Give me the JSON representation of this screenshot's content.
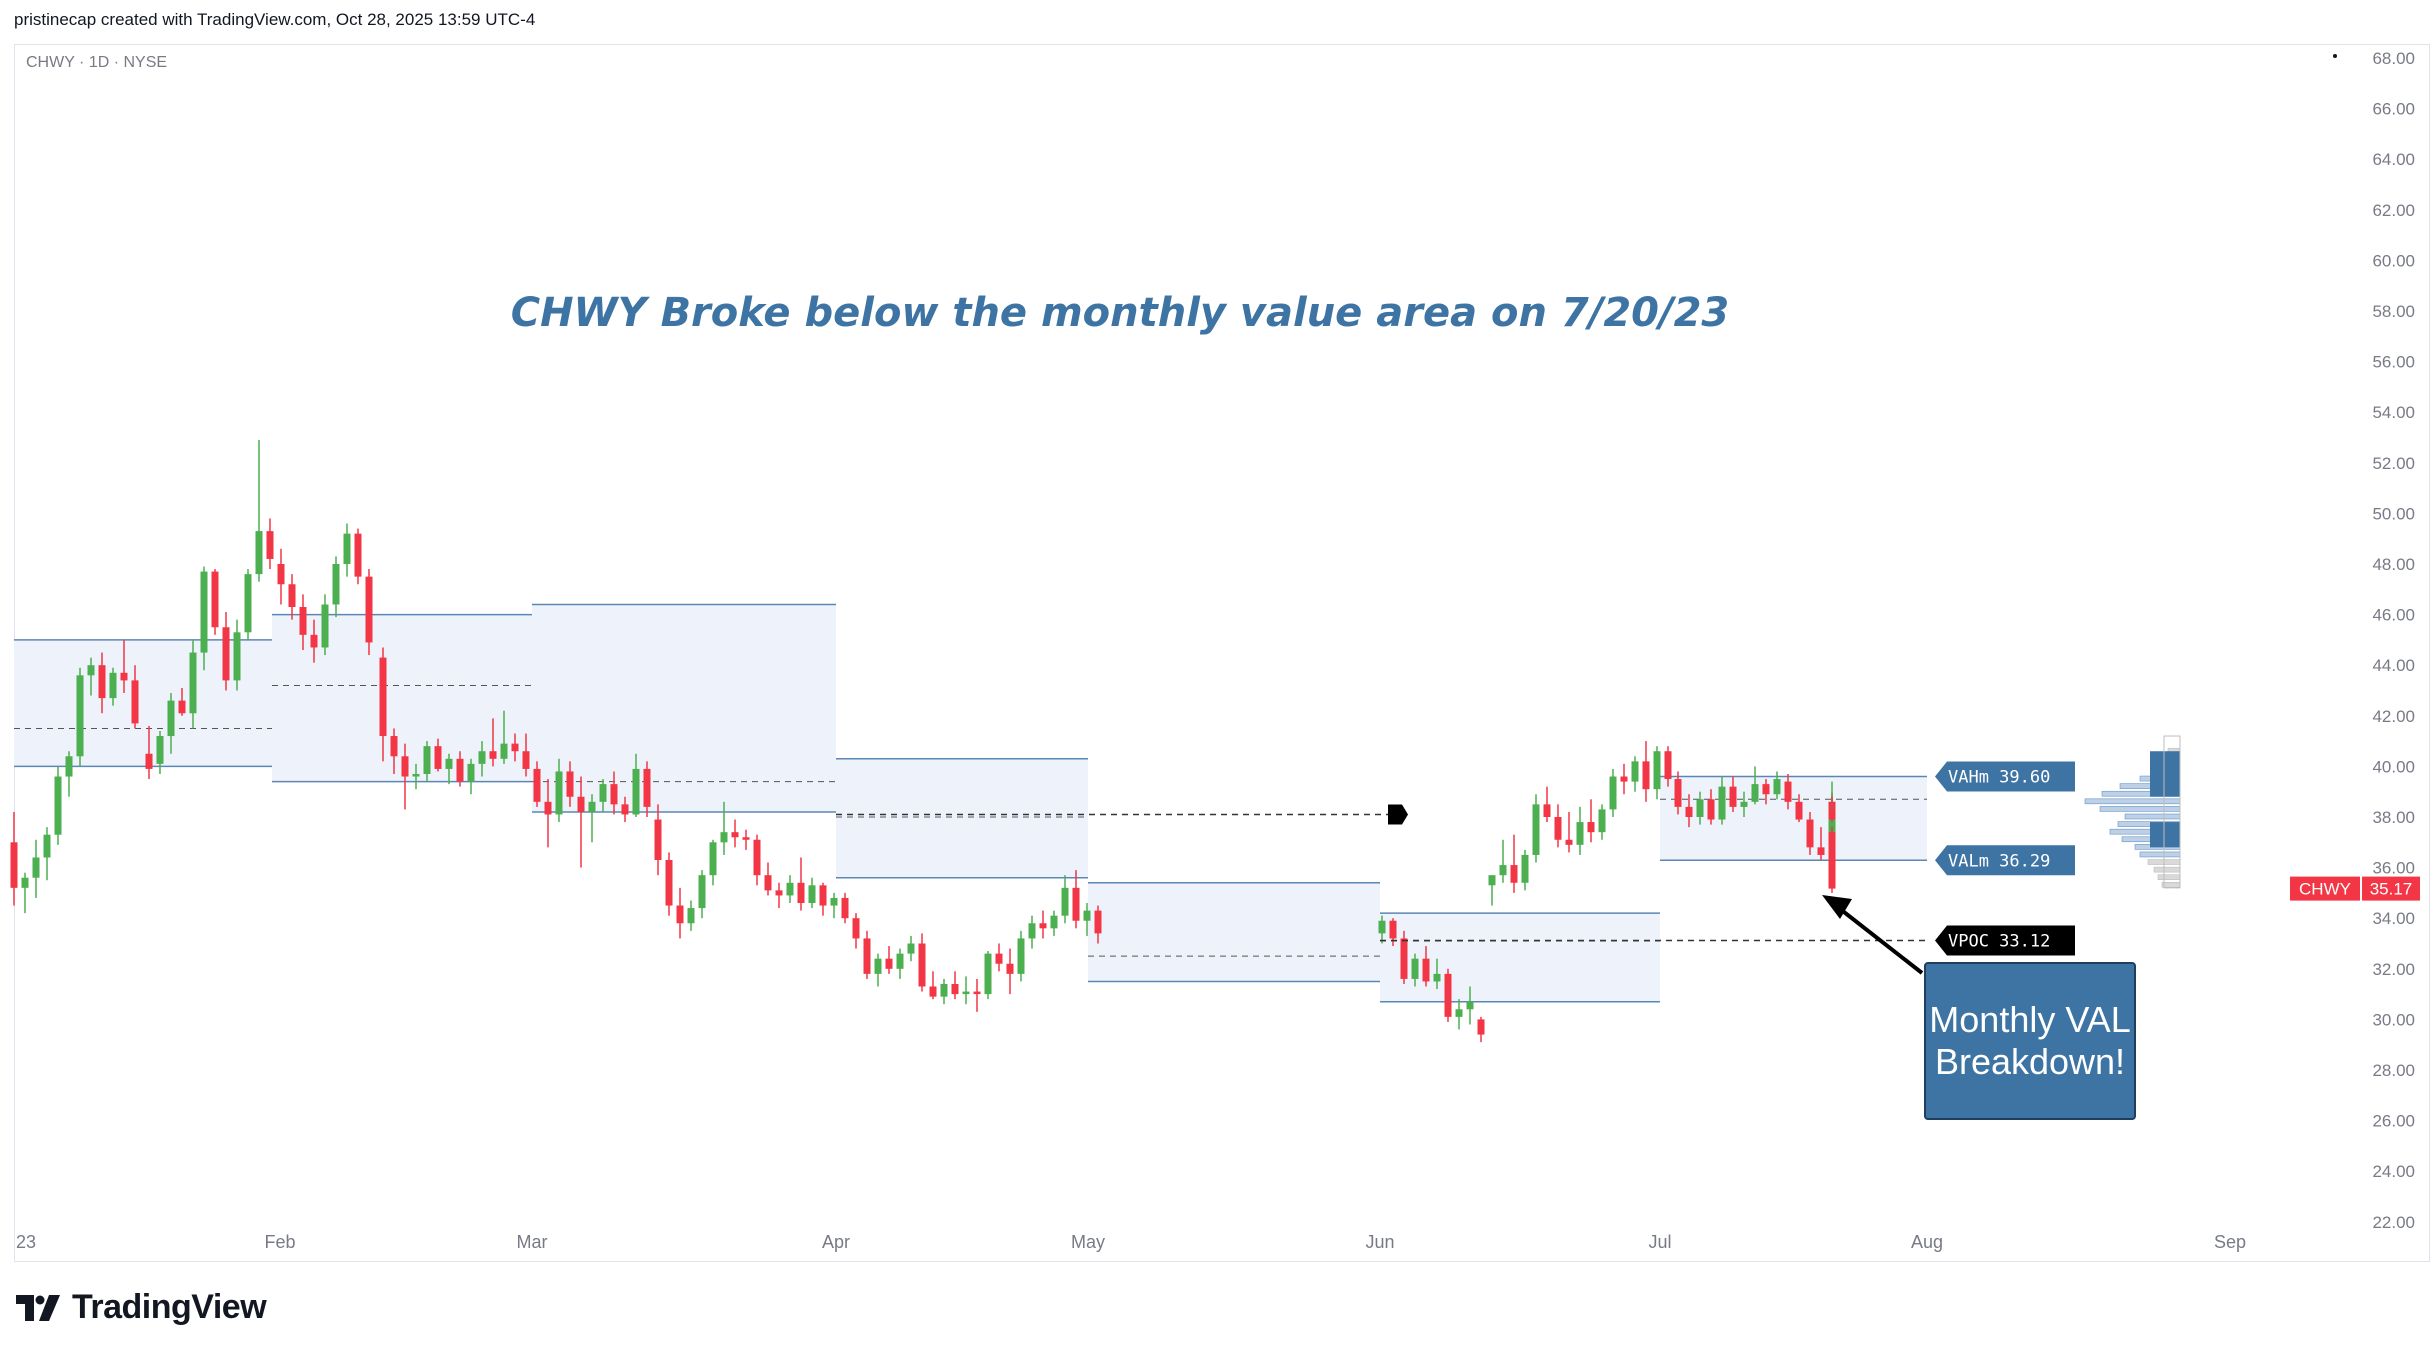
{
  "credit": "pristinecap created with TradingView.com, Oct 28, 2025 13:59 UTC-4",
  "symbol_line": "CHWY · 1D · NYSE",
  "logo_text": "TradingView",
  "colors": {
    "up": "#4caf50",
    "down": "#f23645",
    "profile_fill": "#eef2fb",
    "profile_line": "#5b87b6",
    "title": "#3d74a3",
    "callout_bg": "#3d74a3"
  },
  "chart_data": {
    "type": "candlestick",
    "title": "CHWY Broke below the monthly value area on 7/20/23",
    "y_ticks": [
      "68.00",
      "66.00",
      "64.00",
      "62.00",
      "60.00",
      "58.00",
      "56.00",
      "54.00",
      "52.00",
      "50.00",
      "48.00",
      "46.00",
      "44.00",
      "42.00",
      "40.00",
      "38.00",
      "36.00",
      "34.00",
      "32.00",
      "30.00",
      "28.00",
      "26.00",
      "24.00",
      "22.00"
    ],
    "x_ticks": [
      "23",
      "Feb",
      "Mar",
      "Apr",
      "May",
      "Jun",
      "Jul",
      "Aug",
      "Sep"
    ],
    "last_price": {
      "symbol": "CHWY",
      "value": "35.17"
    },
    "labels": {
      "vah": "VAHm 39.60",
      "val": "VALm 36.29",
      "vpoc": "VPOC 33.12"
    },
    "callout": [
      "Monthly VAL",
      "Breakdown!"
    ],
    "monthly_value_areas": [
      {
        "month": "Jan",
        "vah": 45.0,
        "val": 40.0,
        "poc": 41.5
      },
      {
        "month": "Feb",
        "vah": 46.0,
        "val": 39.4,
        "poc": 43.2
      },
      {
        "month": "Mar",
        "vah": 46.4,
        "val": 38.2,
        "poc": 39.4
      },
      {
        "month": "Apr",
        "vah": 40.3,
        "val": 35.6,
        "poc": 38.0
      },
      {
        "month": "May",
        "vah": 35.4,
        "val": 31.5,
        "poc": 32.5
      },
      {
        "month": "Jun",
        "vah": 34.2,
        "val": 30.7,
        "poc": 33.1
      },
      {
        "month": "Jul",
        "vah": 39.6,
        "val": 36.29,
        "poc": 38.7
      }
    ],
    "candles": [
      {
        "o": 37.0,
        "h": 38.2,
        "l": 34.5,
        "c": 35.2
      },
      {
        "o": 35.2,
        "h": 35.8,
        "l": 34.2,
        "c": 35.6
      },
      {
        "o": 35.6,
        "h": 37.1,
        "l": 34.8,
        "c": 36.4
      },
      {
        "o": 36.4,
        "h": 37.6,
        "l": 35.5,
        "c": 37.3
      },
      {
        "o": 37.3,
        "h": 40.0,
        "l": 36.9,
        "c": 39.6
      },
      {
        "o": 39.6,
        "h": 40.6,
        "l": 38.8,
        "c": 40.4
      },
      {
        "o": 40.4,
        "h": 43.9,
        "l": 40.0,
        "c": 43.6
      },
      {
        "o": 43.6,
        "h": 44.3,
        "l": 42.8,
        "c": 44.0
      },
      {
        "o": 44.0,
        "h": 44.5,
        "l": 42.1,
        "c": 42.7
      },
      {
        "o": 42.7,
        "h": 43.9,
        "l": 42.4,
        "c": 43.7
      },
      {
        "o": 43.7,
        "h": 45.0,
        "l": 42.9,
        "c": 43.4
      },
      {
        "o": 43.4,
        "h": 44.0,
        "l": 41.5,
        "c": 41.7
      },
      {
        "o": 40.5,
        "h": 41.6,
        "l": 39.5,
        "c": 39.9
      },
      {
        "o": 40.1,
        "h": 41.4,
        "l": 39.7,
        "c": 41.2
      },
      {
        "o": 41.2,
        "h": 42.9,
        "l": 40.5,
        "c": 42.6
      },
      {
        "o": 42.6,
        "h": 43.1,
        "l": 42.0,
        "c": 42.1
      },
      {
        "o": 42.1,
        "h": 45.0,
        "l": 41.5,
        "c": 44.5
      },
      {
        "o": 44.5,
        "h": 47.9,
        "l": 43.8,
        "c": 47.7
      },
      {
        "o": 47.7,
        "h": 47.8,
        "l": 45.2,
        "c": 45.5
      },
      {
        "o": 45.5,
        "h": 46.1,
        "l": 43.0,
        "c": 43.4
      },
      {
        "o": 43.4,
        "h": 45.8,
        "l": 43.0,
        "c": 45.3
      },
      {
        "o": 45.3,
        "h": 47.8,
        "l": 45.0,
        "c": 47.6
      },
      {
        "o": 47.6,
        "h": 52.9,
        "l": 47.3,
        "c": 49.3
      },
      {
        "o": 49.3,
        "h": 49.8,
        "l": 47.8,
        "c": 48.2
      },
      {
        "o": 48.0,
        "h": 48.6,
        "l": 46.4,
        "c": 47.2
      },
      {
        "o": 47.2,
        "h": 47.6,
        "l": 45.8,
        "c": 46.3
      },
      {
        "o": 46.3,
        "h": 46.8,
        "l": 44.6,
        "c": 45.2
      },
      {
        "o": 45.2,
        "h": 45.8,
        "l": 44.1,
        "c": 44.7
      },
      {
        "o": 44.7,
        "h": 46.8,
        "l": 44.4,
        "c": 46.4
      },
      {
        "o": 46.4,
        "h": 48.3,
        "l": 45.9,
        "c": 48.0
      },
      {
        "o": 48.0,
        "h": 49.6,
        "l": 47.5,
        "c": 49.2
      },
      {
        "o": 49.2,
        "h": 49.4,
        "l": 47.2,
        "c": 47.5
      },
      {
        "o": 47.5,
        "h": 47.8,
        "l": 44.4,
        "c": 44.9
      },
      {
        "o": 44.3,
        "h": 44.7,
        "l": 40.2,
        "c": 41.2
      },
      {
        "o": 41.2,
        "h": 41.5,
        "l": 39.7,
        "c": 40.4
      },
      {
        "o": 40.4,
        "h": 40.9,
        "l": 38.3,
        "c": 39.6
      },
      {
        "o": 39.6,
        "h": 40.1,
        "l": 39.1,
        "c": 39.7
      },
      {
        "o": 39.7,
        "h": 41.0,
        "l": 39.4,
        "c": 40.8
      },
      {
        "o": 40.8,
        "h": 41.1,
        "l": 39.8,
        "c": 39.9
      },
      {
        "o": 39.9,
        "h": 40.5,
        "l": 39.3,
        "c": 40.3
      },
      {
        "o": 40.3,
        "h": 40.6,
        "l": 39.2,
        "c": 39.4
      },
      {
        "o": 39.4,
        "h": 40.3,
        "l": 38.9,
        "c": 40.1
      },
      {
        "o": 40.1,
        "h": 41.0,
        "l": 39.6,
        "c": 40.6
      },
      {
        "o": 40.6,
        "h": 41.9,
        "l": 40.0,
        "c": 40.3
      },
      {
        "o": 40.3,
        "h": 42.2,
        "l": 40.1,
        "c": 40.9
      },
      {
        "o": 40.9,
        "h": 41.3,
        "l": 40.2,
        "c": 40.6
      },
      {
        "o": 40.6,
        "h": 41.3,
        "l": 39.6,
        "c": 39.9
      },
      {
        "o": 39.9,
        "h": 40.2,
        "l": 38.4,
        "c": 38.6
      },
      {
        "o": 38.6,
        "h": 39.5,
        "l": 36.8,
        "c": 38.1
      },
      {
        "o": 38.1,
        "h": 40.3,
        "l": 37.8,
        "c": 39.8
      },
      {
        "o": 39.8,
        "h": 40.2,
        "l": 38.4,
        "c": 38.8
      },
      {
        "o": 38.8,
        "h": 39.6,
        "l": 36.0,
        "c": 38.2
      },
      {
        "o": 38.2,
        "h": 38.9,
        "l": 37.0,
        "c": 38.6
      },
      {
        "o": 38.6,
        "h": 39.5,
        "l": 38.2,
        "c": 39.3
      },
      {
        "o": 39.3,
        "h": 39.8,
        "l": 38.1,
        "c": 38.5
      },
      {
        "o": 38.5,
        "h": 38.8,
        "l": 37.8,
        "c": 38.1
      },
      {
        "o": 38.1,
        "h": 40.5,
        "l": 38.0,
        "c": 39.9
      },
      {
        "o": 39.9,
        "h": 40.2,
        "l": 38.0,
        "c": 38.4
      },
      {
        "o": 37.9,
        "h": 38.5,
        "l": 35.7,
        "c": 36.3
      },
      {
        "o": 36.3,
        "h": 36.6,
        "l": 34.1,
        "c": 34.5
      },
      {
        "o": 34.5,
        "h": 35.2,
        "l": 33.2,
        "c": 33.8
      },
      {
        "o": 33.8,
        "h": 34.7,
        "l": 33.5,
        "c": 34.4
      },
      {
        "o": 34.4,
        "h": 35.9,
        "l": 34.0,
        "c": 35.7
      },
      {
        "o": 35.7,
        "h": 37.1,
        "l": 35.3,
        "c": 37.0
      },
      {
        "o": 37.0,
        "h": 38.6,
        "l": 36.5,
        "c": 37.4
      },
      {
        "o": 37.4,
        "h": 37.9,
        "l": 36.8,
        "c": 37.2
      },
      {
        "o": 37.2,
        "h": 37.5,
        "l": 36.7,
        "c": 37.1
      },
      {
        "o": 37.1,
        "h": 37.3,
        "l": 35.3,
        "c": 35.7
      },
      {
        "o": 35.7,
        "h": 36.2,
        "l": 34.9,
        "c": 35.1
      },
      {
        "o": 35.1,
        "h": 35.4,
        "l": 34.4,
        "c": 34.9
      },
      {
        "o": 34.9,
        "h": 35.7,
        "l": 34.6,
        "c": 35.4
      },
      {
        "o": 35.4,
        "h": 36.4,
        "l": 34.3,
        "c": 34.6
      },
      {
        "o": 34.6,
        "h": 35.6,
        "l": 34.4,
        "c": 35.3
      },
      {
        "o": 35.3,
        "h": 35.4,
        "l": 34.1,
        "c": 34.5
      },
      {
        "o": 34.5,
        "h": 35.0,
        "l": 34.0,
        "c": 34.8
      },
      {
        "o": 34.8,
        "h": 35.0,
        "l": 33.8,
        "c": 34.0
      },
      {
        "o": 34.0,
        "h": 34.2,
        "l": 32.8,
        "c": 33.2
      },
      {
        "o": 33.2,
        "h": 33.5,
        "l": 31.6,
        "c": 31.8
      },
      {
        "o": 31.8,
        "h": 32.6,
        "l": 31.3,
        "c": 32.4
      },
      {
        "o": 32.4,
        "h": 32.9,
        "l": 31.8,
        "c": 32.0
      },
      {
        "o": 32.0,
        "h": 32.8,
        "l": 31.6,
        "c": 32.6
      },
      {
        "o": 32.6,
        "h": 33.3,
        "l": 32.3,
        "c": 33.0
      },
      {
        "o": 33.0,
        "h": 33.4,
        "l": 31.1,
        "c": 31.3
      },
      {
        "o": 31.3,
        "h": 31.9,
        "l": 30.8,
        "c": 30.9
      },
      {
        "o": 30.9,
        "h": 31.6,
        "l": 30.6,
        "c": 31.4
      },
      {
        "o": 31.4,
        "h": 31.9,
        "l": 30.8,
        "c": 31.0
      },
      {
        "o": 31.0,
        "h": 31.7,
        "l": 30.6,
        "c": 31.1
      },
      {
        "o": 31.1,
        "h": 31.6,
        "l": 30.3,
        "c": 31.0
      },
      {
        "o": 31.0,
        "h": 32.7,
        "l": 30.8,
        "c": 32.6
      },
      {
        "o": 32.6,
        "h": 33.0,
        "l": 31.9,
        "c": 32.2
      },
      {
        "o": 32.2,
        "h": 32.8,
        "l": 31.0,
        "c": 31.8
      },
      {
        "o": 31.8,
        "h": 33.5,
        "l": 31.5,
        "c": 33.2
      },
      {
        "o": 33.2,
        "h": 34.1,
        "l": 32.8,
        "c": 33.8
      },
      {
        "o": 33.8,
        "h": 34.3,
        "l": 33.2,
        "c": 33.6
      },
      {
        "o": 33.6,
        "h": 34.3,
        "l": 33.3,
        "c": 34.1
      },
      {
        "o": 34.1,
        "h": 35.7,
        "l": 33.8,
        "c": 35.2
      },
      {
        "o": 35.2,
        "h": 35.9,
        "l": 33.6,
        "c": 33.9
      },
      {
        "o": 33.9,
        "h": 34.6,
        "l": 33.3,
        "c": 34.3
      },
      {
        "o": 34.3,
        "h": 34.5,
        "l": 33.0,
        "c": 33.4
      },
      {
        "o": 33.4,
        "h": 34.1,
        "l": 33.0,
        "c": 33.9
      },
      {
        "o": 33.9,
        "h": 34.0,
        "l": 32.9,
        "c": 33.2
      },
      {
        "o": 33.2,
        "h": 33.5,
        "l": 31.4,
        "c": 31.6
      },
      {
        "o": 31.6,
        "h": 32.6,
        "l": 31.3,
        "c": 32.4
      },
      {
        "o": 32.4,
        "h": 32.9,
        "l": 31.3,
        "c": 31.5
      },
      {
        "o": 31.5,
        "h": 32.4,
        "l": 31.2,
        "c": 31.8
      },
      {
        "o": 31.8,
        "h": 32.0,
        "l": 29.9,
        "c": 30.1
      },
      {
        "o": 30.1,
        "h": 30.8,
        "l": 29.6,
        "c": 30.4
      },
      {
        "o": 30.4,
        "h": 31.3,
        "l": 29.8,
        "c": 30.7
      },
      {
        "o": 30.0,
        "h": 30.1,
        "l": 29.1,
        "c": 29.4
      },
      {
        "o": 35.3,
        "h": 35.7,
        "l": 34.5,
        "c": 35.7
      },
      {
        "o": 35.7,
        "h": 37.1,
        "l": 35.4,
        "c": 36.1
      },
      {
        "o": 36.1,
        "h": 37.3,
        "l": 35.0,
        "c": 35.4
      },
      {
        "o": 35.4,
        "h": 36.7,
        "l": 35.1,
        "c": 36.5
      },
      {
        "o": 36.5,
        "h": 38.9,
        "l": 36.2,
        "c": 38.5
      },
      {
        "o": 38.5,
        "h": 39.2,
        "l": 37.8,
        "c": 38.0
      },
      {
        "o": 38.0,
        "h": 38.5,
        "l": 36.8,
        "c": 37.1
      },
      {
        "o": 37.1,
        "h": 38.2,
        "l": 36.6,
        "c": 36.9
      },
      {
        "o": 36.9,
        "h": 38.4,
        "l": 36.5,
        "c": 37.8
      },
      {
        "o": 37.8,
        "h": 38.7,
        "l": 37.0,
        "c": 37.4
      },
      {
        "o": 37.4,
        "h": 38.5,
        "l": 37.1,
        "c": 38.3
      },
      {
        "o": 38.3,
        "h": 39.9,
        "l": 38.0,
        "c": 39.6
      },
      {
        "o": 39.6,
        "h": 40.1,
        "l": 38.9,
        "c": 39.4
      },
      {
        "o": 39.4,
        "h": 40.4,
        "l": 39.0,
        "c": 40.2
      },
      {
        "o": 40.2,
        "h": 41.0,
        "l": 38.6,
        "c": 39.1
      },
      {
        "o": 39.1,
        "h": 40.8,
        "l": 38.7,
        "c": 40.6
      },
      {
        "o": 40.6,
        "h": 40.8,
        "l": 39.2,
        "c": 39.5
      },
      {
        "o": 39.5,
        "h": 39.8,
        "l": 38.1,
        "c": 38.4
      },
      {
        "o": 38.4,
        "h": 38.9,
        "l": 37.6,
        "c": 38.0
      },
      {
        "o": 38.0,
        "h": 39.0,
        "l": 37.7,
        "c": 38.7
      },
      {
        "o": 38.7,
        "h": 39.1,
        "l": 37.7,
        "c": 37.9
      },
      {
        "o": 37.9,
        "h": 39.6,
        "l": 37.7,
        "c": 39.2
      },
      {
        "o": 39.2,
        "h": 39.6,
        "l": 38.2,
        "c": 38.4
      },
      {
        "o": 38.4,
        "h": 39.0,
        "l": 38.0,
        "c": 38.6
      },
      {
        "o": 38.6,
        "h": 40.0,
        "l": 38.5,
        "c": 39.3
      },
      {
        "o": 39.3,
        "h": 39.5,
        "l": 38.5,
        "c": 38.9
      },
      {
        "o": 38.9,
        "h": 39.8,
        "l": 38.7,
        "c": 39.5
      },
      {
        "o": 39.4,
        "h": 39.7,
        "l": 38.3,
        "c": 38.6
      },
      {
        "o": 38.6,
        "h": 38.9,
        "l": 37.8,
        "c": 37.9
      },
      {
        "o": 37.9,
        "h": 38.2,
        "l": 36.5,
        "c": 36.8
      },
      {
        "o": 36.8,
        "h": 37.6,
        "l": 36.3,
        "c": 36.5
      },
      {
        "o": 36.5,
        "h": 37.1,
        "l": 36.3,
        "c": 36.6
      },
      {
        "o": 36.6,
        "h": 37.5,
        "l": 36.4,
        "c": 37.3
      },
      {
        "o": 37.3,
        "h": 38.9,
        "l": 37.0,
        "c": 38.6
      },
      {
        "o": 38.6,
        "h": 39.0,
        "l": 37.0,
        "c": 37.4
      },
      {
        "o": 37.4,
        "h": 38.1,
        "l": 37.0,
        "c": 37.8
      },
      {
        "o": 37.8,
        "h": 38.2,
        "l": 37.4,
        "c": 37.6
      },
      {
        "o": 37.6,
        "h": 39.4,
        "l": 37.2,
        "c": 38.0
      },
      {
        "o": 38.0,
        "h": 38.7,
        "l": 37.6,
        "c": 38.2
      },
      {
        "o": 38.2,
        "h": 38.8,
        "l": 37.8,
        "c": 37.9
      },
      {
        "o": 37.4,
        "h": 37.6,
        "l": 35.0,
        "c": 35.17
      }
    ],
    "volume_profile": [
      {
        "price": 40.6,
        "width": 12
      },
      {
        "price": 40.2,
        "width": 16
      },
      {
        "price": 39.8,
        "width": 22
      },
      {
        "price": 39.5,
        "width": 40
      },
      {
        "price": 39.2,
        "width": 60
      },
      {
        "price": 38.9,
        "width": 78
      },
      {
        "price": 38.6,
        "width": 95
      },
      {
        "price": 38.3,
        "width": 80
      },
      {
        "price": 38.0,
        "width": 55
      },
      {
        "price": 37.7,
        "width": 62
      },
      {
        "price": 37.4,
        "width": 70
      },
      {
        "price": 37.1,
        "width": 58
      },
      {
        "price": 36.8,
        "width": 45
      },
      {
        "price": 36.5,
        "width": 40
      },
      {
        "price": 36.2,
        "width": 32
      },
      {
        "price": 35.9,
        "width": 26
      },
      {
        "price": 35.6,
        "width": 22
      },
      {
        "price": 35.3,
        "width": 18
      }
    ]
  }
}
